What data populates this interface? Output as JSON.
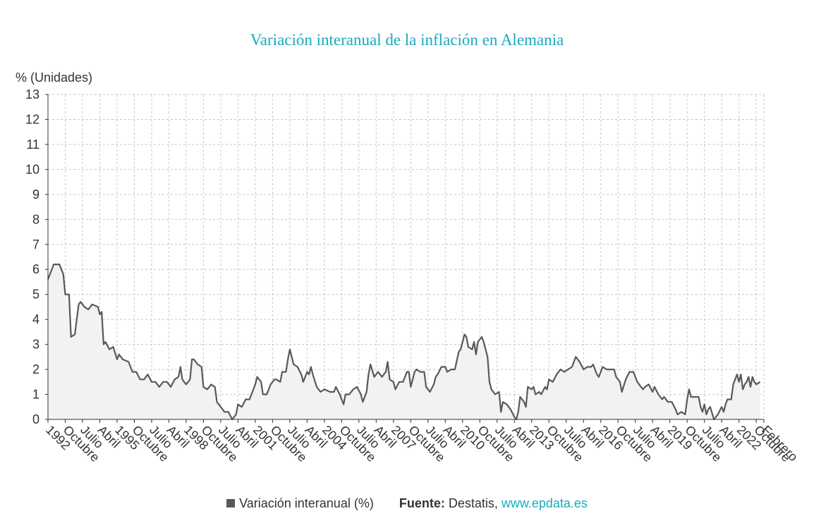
{
  "chart_data": {
    "type": "area",
    "title": "Variación interanual de la inflación en Alemania",
    "ylabel": "% (Unidades)",
    "ylim": [
      0,
      13
    ],
    "yticks": [
      0,
      1,
      2,
      3,
      4,
      5,
      6,
      7,
      8,
      9,
      10,
      11,
      12,
      13
    ],
    "grid": true,
    "legend_position": "bottom",
    "colors": {
      "line": "#595959",
      "fill": "#f2f2f2",
      "grid": "#c8c8c8",
      "title": "#1aa9c0"
    },
    "xtick_labels": [
      "1992",
      "Octubre",
      "Julio",
      "Abril",
      "1995",
      "Octubre",
      "Julio",
      "Abril",
      "1998",
      "Octubre",
      "Julio",
      "Abril",
      "2001",
      "Octubre",
      "Julio",
      "Abril",
      "2004",
      "Octubre",
      "Julio",
      "Abril",
      "2007",
      "Octubre",
      "Julio",
      "Abril",
      "2010",
      "Octubre",
      "Julio",
      "Abril",
      "2013",
      "Octubre",
      "Julio",
      "Abril",
      "2016",
      "Octubre",
      "Julio",
      "Abril",
      "2019",
      "Octubre",
      "Julio",
      "Abril",
      "2022",
      "Octubre",
      "Febrero"
    ],
    "x_start": "1992-01",
    "x_end": "2023-02",
    "series": [
      {
        "name": "Variación interanual (%)",
        "points": [
          [
            "1992-01",
            5.6
          ],
          [
            "1992-04",
            6.2
          ],
          [
            "1992-07",
            6.2
          ],
          [
            "1992-09",
            5.8
          ],
          [
            "1992-10",
            5.0
          ],
          [
            "1992-12",
            5.0
          ],
          [
            "1993-01",
            3.3
          ],
          [
            "1993-03",
            3.4
          ],
          [
            "1993-05",
            4.6
          ],
          [
            "1993-06",
            4.7
          ],
          [
            "1993-08",
            4.5
          ],
          [
            "1993-10",
            4.4
          ],
          [
            "1993-12",
            4.6
          ],
          [
            "1994-03",
            4.5
          ],
          [
            "1994-04",
            4.2
          ],
          [
            "1994-05",
            4.3
          ],
          [
            "1994-06",
            3.0
          ],
          [
            "1994-07",
            3.1
          ],
          [
            "1994-09",
            2.8
          ],
          [
            "1994-11",
            2.9
          ],
          [
            "1995-01",
            2.4
          ],
          [
            "1995-02",
            2.6
          ],
          [
            "1995-04",
            2.4
          ],
          [
            "1995-07",
            2.3
          ],
          [
            "1995-09",
            1.9
          ],
          [
            "1995-11",
            1.9
          ],
          [
            "1996-01",
            1.6
          ],
          [
            "1996-03",
            1.6
          ],
          [
            "1996-05",
            1.8
          ],
          [
            "1996-07",
            1.5
          ],
          [
            "1996-09",
            1.5
          ],
          [
            "1996-11",
            1.3
          ],
          [
            "1997-01",
            1.5
          ],
          [
            "1997-03",
            1.5
          ],
          [
            "1997-05",
            1.3
          ],
          [
            "1997-07",
            1.6
          ],
          [
            "1997-09",
            1.7
          ],
          [
            "1997-10",
            2.1
          ],
          [
            "1997-11",
            1.6
          ],
          [
            "1998-01",
            1.4
          ],
          [
            "1998-03",
            1.6
          ],
          [
            "1998-04",
            2.4
          ],
          [
            "1998-05",
            2.4
          ],
          [
            "1998-07",
            2.2
          ],
          [
            "1998-09",
            2.1
          ],
          [
            "1998-10",
            1.3
          ],
          [
            "1998-12",
            1.2
          ],
          [
            "1999-02",
            1.4
          ],
          [
            "1999-04",
            1.3
          ],
          [
            "1999-05",
            0.7
          ],
          [
            "1999-07",
            0.5
          ],
          [
            "1999-09",
            0.3
          ],
          [
            "1999-11",
            0.3
          ],
          [
            "2000-01",
            0.0
          ],
          [
            "2000-03",
            0.2
          ],
          [
            "2000-04",
            0.6
          ],
          [
            "2000-06",
            0.5
          ],
          [
            "2000-08",
            0.8
          ],
          [
            "2000-10",
            0.8
          ],
          [
            "2000-12",
            1.2
          ],
          [
            "2001-01",
            1.4
          ],
          [
            "2001-02",
            1.7
          ],
          [
            "2001-04",
            1.5
          ],
          [
            "2001-05",
            1.0
          ],
          [
            "2001-07",
            1.0
          ],
          [
            "2001-09",
            1.4
          ],
          [
            "2001-11",
            1.6
          ],
          [
            "2001-12",
            1.6
          ],
          [
            "2002-02",
            1.5
          ],
          [
            "2002-03",
            1.9
          ],
          [
            "2002-05",
            1.9
          ],
          [
            "2002-06",
            2.4
          ],
          [
            "2002-07",
            2.8
          ],
          [
            "2002-09",
            2.2
          ],
          [
            "2002-11",
            2.1
          ],
          [
            "2003-01",
            1.8
          ],
          [
            "2003-02",
            1.5
          ],
          [
            "2003-04",
            1.9
          ],
          [
            "2003-05",
            1.8
          ],
          [
            "2003-06",
            2.1
          ],
          [
            "2003-07",
            1.8
          ],
          [
            "2003-09",
            1.3
          ],
          [
            "2003-11",
            1.1
          ],
          [
            "2004-01",
            1.2
          ],
          [
            "2004-04",
            1.1
          ],
          [
            "2004-06",
            1.1
          ],
          [
            "2004-07",
            1.3
          ],
          [
            "2004-09",
            1.0
          ],
          [
            "2004-11",
            0.6
          ],
          [
            "2004-12",
            1.0
          ],
          [
            "2005-02",
            1.0
          ],
          [
            "2005-04",
            1.2
          ],
          [
            "2005-06",
            1.3
          ],
          [
            "2005-08",
            1.0
          ],
          [
            "2005-09",
            0.7
          ],
          [
            "2005-11",
            1.1
          ],
          [
            "2005-12",
            1.8
          ],
          [
            "2006-01",
            2.2
          ],
          [
            "2006-03",
            1.7
          ],
          [
            "2006-05",
            1.9
          ],
          [
            "2006-07",
            1.7
          ],
          [
            "2006-09",
            1.9
          ],
          [
            "2006-10",
            2.3
          ],
          [
            "2006-11",
            1.6
          ],
          [
            "2007-01",
            1.5
          ],
          [
            "2007-02",
            1.2
          ],
          [
            "2007-04",
            1.5
          ],
          [
            "2007-06",
            1.5
          ],
          [
            "2007-08",
            1.9
          ],
          [
            "2007-09",
            1.9
          ],
          [
            "2007-10",
            1.3
          ],
          [
            "2007-11",
            1.6
          ],
          [
            "2007-12",
            1.9
          ],
          [
            "2008-01",
            2.0
          ],
          [
            "2008-03",
            1.9
          ],
          [
            "2008-05",
            1.9
          ],
          [
            "2008-06",
            1.3
          ],
          [
            "2008-08",
            1.1
          ],
          [
            "2008-10",
            1.4
          ],
          [
            "2008-11",
            1.7
          ],
          [
            "2008-12",
            1.8
          ],
          [
            "2009-02",
            2.1
          ],
          [
            "2009-04",
            2.1
          ],
          [
            "2009-05",
            1.9
          ],
          [
            "2009-07",
            2.0
          ],
          [
            "2009-09",
            2.0
          ],
          [
            "2009-11",
            2.7
          ],
          [
            "2009-12",
            2.8
          ],
          [
            "2010-02",
            3.4
          ],
          [
            "2010-03",
            3.3
          ],
          [
            "2010-04",
            2.9
          ],
          [
            "2010-06",
            2.8
          ],
          [
            "2010-07",
            3.1
          ],
          [
            "2010-08",
            2.6
          ],
          [
            "2010-09",
            3.1
          ],
          [
            "2010-11",
            3.3
          ],
          [
            "2010-12",
            3.1
          ],
          [
            "2011-02",
            2.5
          ],
          [
            "2011-03",
            1.5
          ],
          [
            "2011-04",
            1.2
          ],
          [
            "2011-06",
            1.0
          ],
          [
            "2011-08",
            1.1
          ],
          [
            "2011-09",
            0.3
          ],
          [
            "2011-10",
            0.7
          ],
          [
            "2011-12",
            0.6
          ],
          [
            "2012-02",
            0.4
          ],
          [
            "2012-04",
            0.1
          ],
          [
            "2012-05",
            0.0
          ],
          [
            "2012-06",
            0.3
          ],
          [
            "2012-07",
            0.9
          ],
          [
            "2012-09",
            0.7
          ],
          [
            "2012-10",
            0.5
          ],
          [
            "2012-11",
            1.3
          ],
          [
            "2013-01",
            1.2
          ],
          [
            "2013-02",
            1.3
          ],
          [
            "2013-03",
            1.0
          ],
          [
            "2013-05",
            1.1
          ],
          [
            "2013-06",
            1.0
          ],
          [
            "2013-08",
            1.3
          ],
          [
            "2013-09",
            1.2
          ],
          [
            "2013-10",
            1.6
          ],
          [
            "2013-12",
            1.5
          ],
          [
            "2014-02",
            1.8
          ],
          [
            "2014-04",
            2.0
          ],
          [
            "2014-06",
            1.9
          ],
          [
            "2014-08",
            2.0
          ],
          [
            "2014-10",
            2.1
          ],
          [
            "2014-12",
            2.5
          ],
          [
            "2015-02",
            2.3
          ],
          [
            "2015-04",
            2.0
          ],
          [
            "2015-06",
            2.1
          ],
          [
            "2015-08",
            2.1
          ],
          [
            "2015-09",
            2.2
          ],
          [
            "2015-11",
            1.8
          ],
          [
            "2015-12",
            1.7
          ],
          [
            "2016-02",
            2.1
          ],
          [
            "2016-04",
            2.0
          ],
          [
            "2016-06",
            2.0
          ],
          [
            "2016-08",
            2.0
          ],
          [
            "2016-09",
            1.7
          ],
          [
            "2016-11",
            1.5
          ],
          [
            "2016-12",
            1.1
          ],
          [
            "2017-02",
            1.6
          ],
          [
            "2017-04",
            1.9
          ],
          [
            "2017-06",
            1.9
          ],
          [
            "2017-08",
            1.5
          ],
          [
            "2017-09",
            1.4
          ],
          [
            "2017-11",
            1.2
          ],
          [
            "2017-12",
            1.3
          ],
          [
            "2018-02",
            1.4
          ],
          [
            "2018-04",
            1.1
          ],
          [
            "2018-05",
            1.3
          ],
          [
            "2018-07",
            1.0
          ],
          [
            "2018-09",
            0.8
          ],
          [
            "2018-10",
            0.9
          ],
          [
            "2018-12",
            0.7
          ],
          [
            "2019-02",
            0.7
          ],
          [
            "2019-04",
            0.4
          ],
          [
            "2019-05",
            0.2
          ],
          [
            "2019-07",
            0.3
          ],
          [
            "2019-09",
            0.2
          ],
          [
            "2019-10",
            0.8
          ],
          [
            "2019-11",
            1.2
          ],
          [
            "2019-12",
            0.9
          ],
          [
            "2020-02",
            0.9
          ],
          [
            "2020-04",
            0.9
          ],
          [
            "2020-05",
            0.5
          ],
          [
            "2020-06",
            0.3
          ],
          [
            "2020-07",
            0.6
          ],
          [
            "2020-08",
            0.2
          ],
          [
            "2020-09",
            0.4
          ],
          [
            "2020-10",
            0.5
          ],
          [
            "2020-12",
            0.0
          ],
          [
            "2021-02",
            0.2
          ],
          [
            "2021-04",
            0.5
          ],
          [
            "2021-05",
            0.3
          ],
          [
            "2021-06",
            0.6
          ],
          [
            "2021-07",
            0.8
          ],
          [
            "2021-09",
            0.8
          ],
          [
            "2021-10",
            1.4
          ],
          [
            "2021-12",
            1.8
          ],
          [
            "2022-01",
            1.5
          ],
          [
            "2022-02",
            1.8
          ],
          [
            "2022-03",
            1.2
          ],
          [
            "2022-04",
            1.4
          ],
          [
            "2022-05",
            1.5
          ],
          [
            "2022-06",
            1.7
          ],
          [
            "2022-07",
            1.3
          ],
          [
            "2022-08",
            1.7
          ],
          [
            "2022-09",
            1.5
          ],
          [
            "2022-10",
            1.4
          ],
          [
            "2022-12",
            1.5
          ]
        ]
      }
    ]
  },
  "legend": {
    "label": "Variación interanual (%)",
    "source_label": "Fuente:",
    "source_text": " Destatis, ",
    "source_link": "www.epdata.es"
  }
}
